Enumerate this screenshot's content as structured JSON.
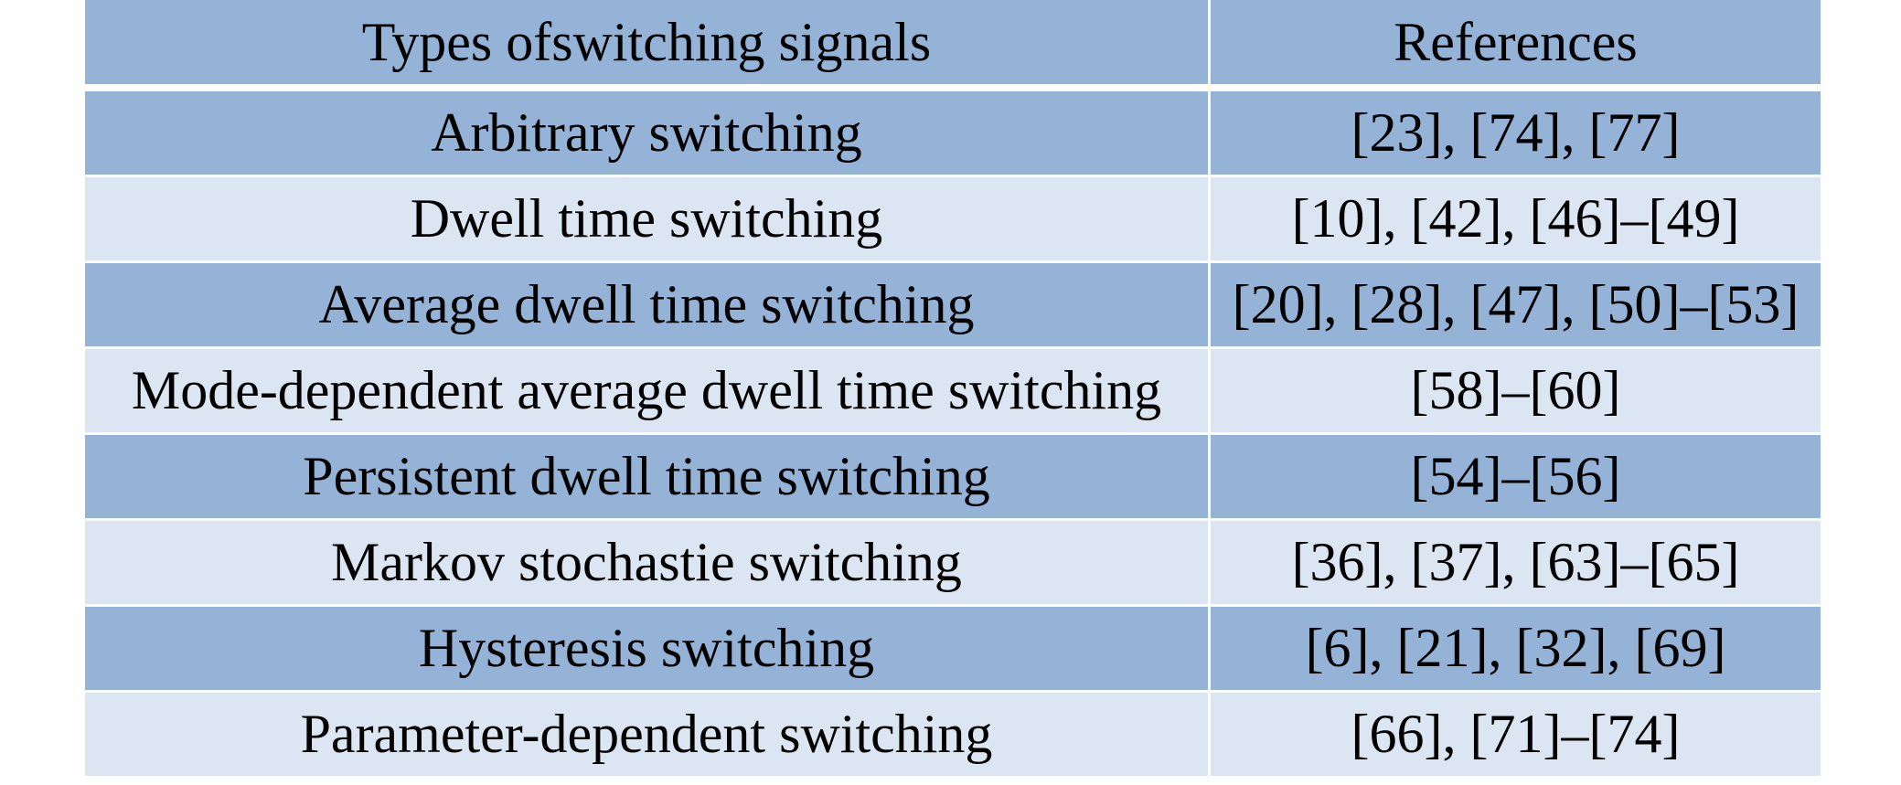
{
  "table": {
    "header": [
      "Types ofswitching signals",
      "References"
    ],
    "rows": [
      [
        "Arbitrary switching",
        "[23], [74], [77]"
      ],
      [
        "Dwell time switching",
        "[10], [42], [46]–[49]"
      ],
      [
        "Average dwell time switching",
        "[20], [28], [47], [50]–[53]"
      ],
      [
        "Mode-dependent average dwell time switching",
        "[58]–[60]"
      ],
      [
        "Persistent dwell time switching",
        "[54]–[56]"
      ],
      [
        "Markov stochastie switching",
        "[36], [37], [63]–[65]"
      ],
      [
        "Hysteresis switching",
        "[6], [21], [32], [69]"
      ],
      [
        "Parameter-dependent switching",
        "[66], [71]–[74]"
      ]
    ]
  }
}
